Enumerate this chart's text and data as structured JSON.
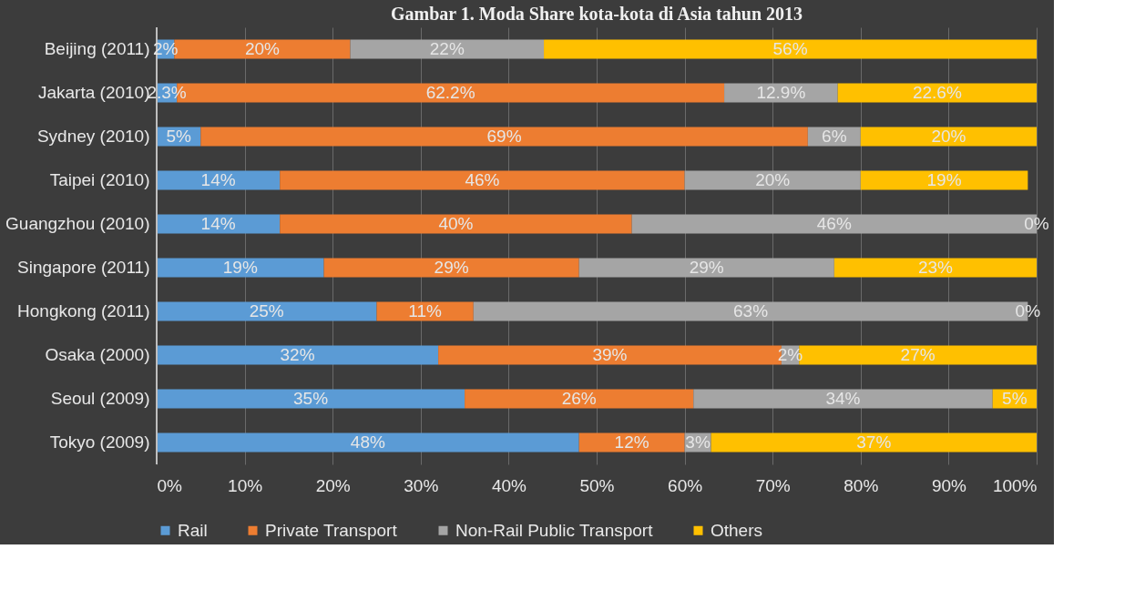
{
  "chart_data": {
    "type": "bar",
    "orientation": "horizontal",
    "stacked": true,
    "title": "Gambar 1. Moda Share kota-kota di Asia tahun 2013",
    "categories": [
      "Beijing (2011)",
      "Jakarta (2010)",
      "Sydney (2010)",
      "Taipei (2010)",
      "Guangzhou (2010)",
      "Singapore (2011)",
      "Hongkong (2011)",
      "Osaka (2000)",
      "Seoul (2009)",
      "Tokyo (2009)"
    ],
    "series": [
      {
        "name": "Rail",
        "color": "#5b9bd5",
        "values": [
          2,
          2.3,
          5,
          14,
          14,
          19,
          25,
          32,
          35,
          48
        ],
        "value_labels": [
          "2%",
          "2.3%",
          "5%",
          "14%",
          "14%",
          "19%",
          "25%",
          "32%",
          "35%",
          "48%"
        ]
      },
      {
        "name": "Private Transport",
        "color": "#ed7d31",
        "values": [
          20,
          62.2,
          69,
          46,
          40,
          29,
          11,
          39,
          26,
          12
        ],
        "value_labels": [
          "20%",
          "62.2%",
          "69%",
          "46%",
          "40%",
          "29%",
          "11%",
          "39%",
          "26%",
          "12%"
        ]
      },
      {
        "name": "Non-Rail Public Transport",
        "color": "#a5a5a5",
        "values": [
          22,
          12.9,
          6,
          20,
          46,
          29,
          63,
          2,
          34,
          3
        ],
        "value_labels": [
          "22%",
          "12.9%",
          "6%",
          "20%",
          "46%",
          "29%",
          "63%",
          "2%",
          "34%",
          "3%"
        ]
      },
      {
        "name": "Others",
        "color": "#ffc000",
        "values": [
          56,
          22.6,
          20,
          19,
          0,
          23,
          0,
          27,
          5,
          37
        ],
        "value_labels": [
          "56%",
          "22.6%",
          "20%",
          "19%",
          "0%",
          "23%",
          "0%",
          "27%",
          "5%",
          "37%"
        ]
      }
    ],
    "xlim": [
      0,
      100
    ],
    "xticks": [
      {
        "value": 0,
        "label": "0%"
      },
      {
        "value": 10,
        "label": "10%"
      },
      {
        "value": 20,
        "label": "20%"
      },
      {
        "value": 30,
        "label": "30%"
      },
      {
        "value": 40,
        "label": "40%"
      },
      {
        "value": 50,
        "label": "50%"
      },
      {
        "value": 60,
        "label": "60%"
      },
      {
        "value": 70,
        "label": "70%"
      },
      {
        "value": 80,
        "label": "80%"
      },
      {
        "value": 90,
        "label": "90%"
      },
      {
        "value": 100,
        "label": "100%"
      }
    ],
    "grid": "x",
    "legend": "bottom"
  }
}
